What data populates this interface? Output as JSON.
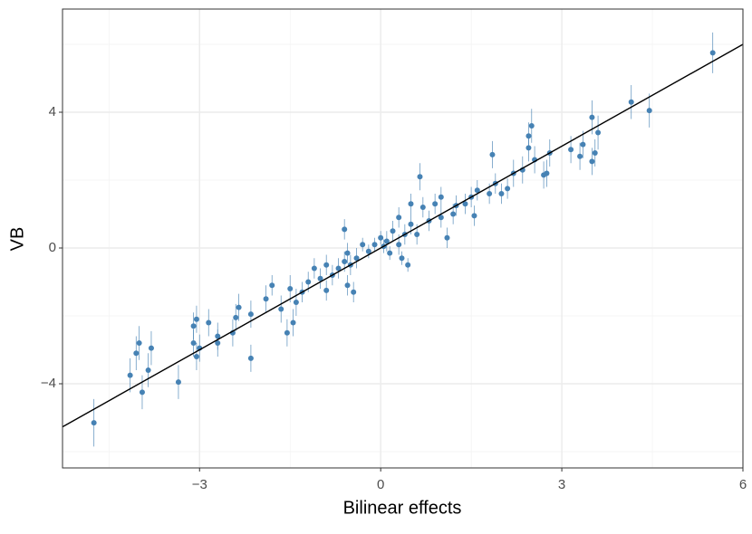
{
  "chart_data": {
    "type": "scatter",
    "xlabel": "Bilinear effects",
    "ylabel": "VB",
    "xlim": [
      -5.27,
      6
    ],
    "ylim": [
      -6.48,
      7.04
    ],
    "xticks": [
      {
        "value": -3,
        "label": "−3"
      },
      0,
      3,
      6
    ],
    "yticks": [
      {
        "value": -4,
        "label": "−4"
      },
      0,
      4
    ],
    "xminor": [
      -4.5,
      -1.5,
      1.5,
      4.5
    ],
    "yminor": [
      -6,
      -2,
      2,
      6
    ],
    "grid": true,
    "reference_line": {
      "slope": 1,
      "intercept": 0,
      "color": "#000000"
    },
    "series": [
      {
        "color": "#4682b4",
        "x": [
          5.5,
          4.15,
          4.45,
          3.6,
          3.5,
          3.5,
          3.35,
          3.15,
          3.3,
          3.55,
          2.5,
          2.45,
          2.45,
          2.55,
          2.8,
          2.7,
          2.75,
          2.35,
          2.2,
          2.1,
          2.0,
          1.85,
          1.9,
          1.8,
          1.6,
          1.5,
          1.4,
          1.25,
          1.55,
          1.2,
          1.0,
          1.0,
          0.9,
          0.8,
          0.7,
          0.6,
          0.65,
          0.5,
          0.4,
          0.3,
          0.3,
          0.2,
          0.1,
          0.05,
          0.0,
          -0.1,
          -0.2,
          -0.3,
          0.15,
          0.35,
          0.45,
          -0.4,
          -0.5,
          -0.6,
          -0.55,
          -0.7,
          -0.8,
          -0.9,
          -1.0,
          -1.1,
          -1.2,
          -1.3,
          -1.4,
          -1.5,
          -1.55,
          -1.45,
          -1.65,
          -1.8,
          -1.9,
          -2.15,
          -2.4,
          -2.35,
          -2.45,
          -2.7,
          -2.7,
          -2.85,
          -3.05,
          -3.1,
          -3.1,
          -3.05,
          -3.0,
          -3.35,
          -2.15,
          -0.6,
          -0.45,
          -0.55,
          -0.9,
          0.5,
          1.1,
          -3.8,
          -3.85,
          -3.95,
          -4.0,
          -4.05,
          -4.15,
          -4.75
        ],
        "values": [
          5.75,
          4.3,
          4.05,
          3.4,
          3.85,
          2.55,
          3.05,
          2.9,
          2.7,
          2.8,
          3.6,
          3.3,
          2.95,
          2.6,
          2.8,
          2.15,
          2.2,
          2.3,
          2.2,
          1.75,
          1.6,
          2.75,
          1.9,
          1.6,
          1.7,
          1.5,
          1.3,
          1.25,
          0.95,
          1.0,
          1.5,
          0.9,
          1.3,
          0.8,
          1.2,
          0.4,
          2.1,
          0.7,
          0.4,
          0.9,
          0.1,
          0.5,
          0.2,
          0.05,
          0.3,
          0.1,
          -0.1,
          0.1,
          -0.15,
          -0.3,
          -0.5,
          -0.3,
          -0.5,
          -0.4,
          -0.15,
          -0.6,
          -0.8,
          -0.5,
          -0.9,
          -0.6,
          -1.0,
          -1.3,
          -1.6,
          -1.2,
          -2.5,
          -2.2,
          -1.8,
          -1.1,
          -1.5,
          -1.95,
          -2.05,
          -1.75,
          -2.5,
          -2.6,
          -2.8,
          -2.2,
          -2.1,
          -2.3,
          -2.8,
          -3.2,
          -2.95,
          -3.95,
          -3.25,
          0.55,
          -1.3,
          -1.1,
          -1.25,
          1.3,
          0.3,
          -2.95,
          -3.6,
          -4.25,
          -2.8,
          -3.1,
          -3.75,
          -5.15
        ],
        "errors": [
          0.6,
          0.5,
          0.5,
          0.5,
          0.5,
          0.4,
          0.4,
          0.4,
          0.4,
          0.4,
          0.5,
          0.4,
          0.4,
          0.4,
          0.4,
          0.4,
          0.4,
          0.4,
          0.4,
          0.3,
          0.3,
          0.4,
          0.3,
          0.3,
          0.3,
          0.3,
          0.3,
          0.3,
          0.3,
          0.3,
          0.3,
          0.3,
          0.3,
          0.3,
          0.3,
          0.3,
          0.4,
          0.3,
          0.3,
          0.3,
          0.3,
          0.3,
          0.3,
          0.2,
          0.2,
          0.2,
          0.2,
          0.2,
          0.2,
          0.2,
          0.2,
          0.3,
          0.3,
          0.3,
          0.3,
          0.3,
          0.3,
          0.3,
          0.3,
          0.3,
          0.3,
          0.3,
          0.4,
          0.4,
          0.4,
          0.4,
          0.4,
          0.3,
          0.4,
          0.4,
          0.4,
          0.4,
          0.4,
          0.4,
          0.4,
          0.4,
          0.4,
          0.4,
          0.4,
          0.4,
          0.4,
          0.5,
          0.4,
          0.3,
          0.3,
          0.3,
          0.3,
          0.3,
          0.3,
          0.5,
          0.5,
          0.5,
          0.5,
          0.5,
          0.5,
          0.7
        ]
      }
    ]
  }
}
